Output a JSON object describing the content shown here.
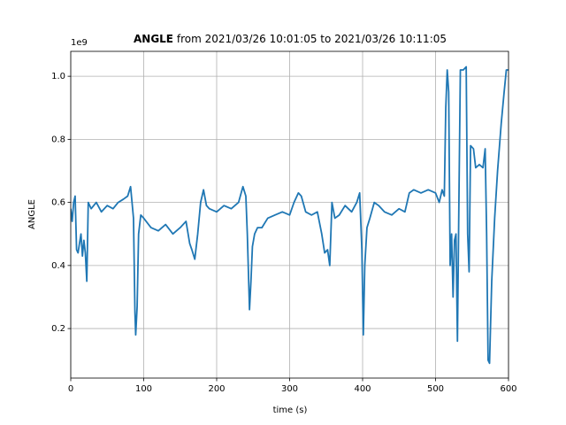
{
  "chart_data": {
    "type": "line",
    "title_bold": "ANGLE",
    "title": "from 2021/03/26 10:01:05 to 2021/03/26 10:11:05",
    "y_offset_label": "1e9",
    "xlabel": "time (s)",
    "ylabel": "ANGLE",
    "color": "#1f77b4",
    "grid": true,
    "xlim": [
      0,
      600
    ],
    "ylim": [
      0.043,
      1.079
    ],
    "xticks": [
      0,
      100,
      200,
      300,
      400,
      500,
      600
    ],
    "yticks": [
      0.2,
      0.4,
      0.6,
      0.8,
      {
        "value": 1,
        "label": "1.0"
      }
    ],
    "x": [
      0,
      2,
      4,
      6,
      8,
      10,
      12,
      14,
      16,
      18,
      20,
      22,
      24,
      28,
      35,
      42,
      50,
      58,
      65,
      72,
      78,
      82,
      84,
      86,
      88,
      89,
      91,
      93,
      96,
      100,
      110,
      120,
      130,
      140,
      150,
      158,
      163,
      166,
      170,
      174,
      178,
      182,
      186,
      190,
      200,
      210,
      220,
      230,
      236,
      240,
      242,
      245,
      247,
      249,
      252,
      256,
      262,
      270,
      280,
      290,
      300,
      306,
      312,
      316,
      322,
      330,
      338,
      344,
      348,
      352,
      355,
      358,
      362,
      368,
      376,
      385,
      392,
      396,
      399,
      401,
      403,
      406,
      410,
      416,
      422,
      430,
      440,
      450,
      458,
      464,
      470,
      480,
      490,
      500,
      505,
      509,
      512,
      514,
      516,
      518,
      520,
      522,
      524,
      526,
      528,
      530,
      532,
      534,
      538,
      542,
      544,
      546,
      548,
      552,
      555,
      560,
      565,
      568,
      570,
      572,
      574,
      577,
      581,
      585,
      590,
      594,
      597,
      600
    ],
    "values": [
      0.58,
      0.54,
      0.6,
      0.62,
      0.45,
      0.44,
      0.47,
      0.5,
      0.43,
      0.48,
      0.44,
      0.35,
      0.6,
      0.58,
      0.6,
      0.57,
      0.59,
      0.58,
      0.6,
      0.61,
      0.62,
      0.65,
      0.6,
      0.55,
      0.25,
      0.18,
      0.27,
      0.5,
      0.56,
      0.55,
      0.52,
      0.51,
      0.53,
      0.5,
      0.52,
      0.54,
      0.47,
      0.45,
      0.42,
      0.5,
      0.6,
      0.64,
      0.59,
      0.58,
      0.57,
      0.59,
      0.58,
      0.6,
      0.65,
      0.62,
      0.5,
      0.26,
      0.35,
      0.46,
      0.5,
      0.52,
      0.52,
      0.55,
      0.56,
      0.57,
      0.56,
      0.6,
      0.63,
      0.62,
      0.57,
      0.56,
      0.57,
      0.5,
      0.44,
      0.45,
      0.4,
      0.6,
      0.55,
      0.56,
      0.59,
      0.57,
      0.6,
      0.63,
      0.45,
      0.18,
      0.4,
      0.52,
      0.55,
      0.6,
      0.59,
      0.57,
      0.56,
      0.58,
      0.57,
      0.63,
      0.64,
      0.63,
      0.64,
      0.63,
      0.6,
      0.64,
      0.62,
      0.9,
      1.02,
      0.95,
      0.4,
      0.5,
      0.3,
      0.48,
      0.5,
      0.16,
      0.6,
      1.02,
      1.02,
      1.03,
      0.5,
      0.38,
      0.78,
      0.77,
      0.71,
      0.72,
      0.71,
      0.77,
      0.5,
      0.1,
      0.09,
      0.35,
      0.55,
      0.7,
      0.85,
      0.95,
      1.02,
      1.02
    ]
  }
}
